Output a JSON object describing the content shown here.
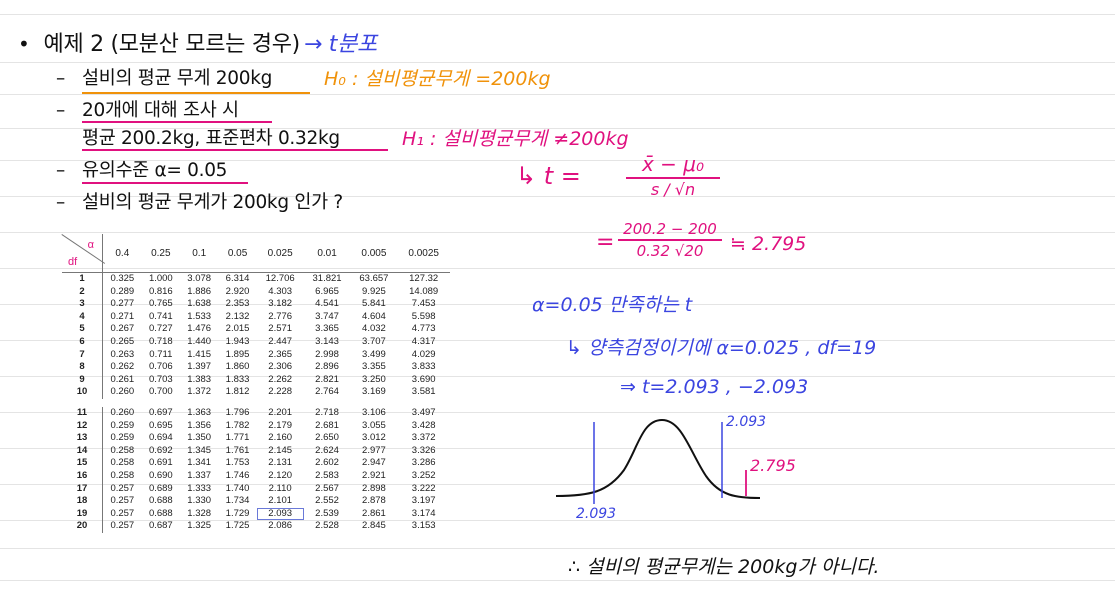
{
  "heading": {
    "bullet": "•",
    "title": "예제 2 (모분산 모르는 경우)",
    "arrow_note": "→ t분포"
  },
  "items": [
    {
      "dash": "–",
      "text": "설비의 평균 무게 200kg"
    },
    {
      "dash": "–",
      "text": "20개에 대해 조사 시"
    },
    {
      "dash": "",
      "text": "평균 200.2kg, 표준편차 0.32kg"
    },
    {
      "dash": "–",
      "text": "유의수준 α= 0.05"
    },
    {
      "dash": "–",
      "text": "설비의 평균 무게가 200kg 인가 ?"
    }
  ],
  "hypotheses": {
    "h0": "H₀ : 설비평균무게 =200kg",
    "h1": "H₁ : 설비평균무게 ≠200kg"
  },
  "formula": {
    "lead": "↳ t =",
    "numerator": "x̄ − μ₀",
    "denominator": "s / √n",
    "eq": "=",
    "num2": "200.2 − 200",
    "den2": "0.32 √20",
    "approx": "≒ 2.795"
  },
  "notes": {
    "line1": "α=0.05 만족하는 t",
    "line2": "↳ 양측검정이기에  α=0.025 , df=19",
    "line3": "⇒  t=2.093 , −2.093",
    "label_right": "2.093",
    "label_left": "2.093",
    "label_stat": "2.795",
    "conclusion": "∴ 설비의 평균무게는 200kg가 아니다."
  },
  "table": {
    "alpha_label": "α",
    "df_label": "df",
    "columns": [
      "0.4",
      "0.25",
      "0.1",
      "0.05",
      "0.025",
      "0.01",
      "0.005",
      "0.0025"
    ],
    "rows": [
      [
        "1",
        "0.325",
        "1.000",
        "3.078",
        "6.314",
        "12.706",
        "31.821",
        "63.657",
        "127.32"
      ],
      [
        "2",
        "0.289",
        "0.816",
        "1.886",
        "2.920",
        "4.303",
        "6.965",
        "9.925",
        "14.089"
      ],
      [
        "3",
        "0.277",
        "0.765",
        "1.638",
        "2.353",
        "3.182",
        "4.541",
        "5.841",
        "7.453"
      ],
      [
        "4",
        "0.271",
        "0.741",
        "1.533",
        "2.132",
        "2.776",
        "3.747",
        "4.604",
        "5.598"
      ],
      [
        "5",
        "0.267",
        "0.727",
        "1.476",
        "2.015",
        "2.571",
        "3.365",
        "4.032",
        "4.773"
      ],
      [
        "6",
        "0.265",
        "0.718",
        "1.440",
        "1.943",
        "2.447",
        "3.143",
        "3.707",
        "4.317"
      ],
      [
        "7",
        "0.263",
        "0.711",
        "1.415",
        "1.895",
        "2.365",
        "2.998",
        "3.499",
        "4.029"
      ],
      [
        "8",
        "0.262",
        "0.706",
        "1.397",
        "1.860",
        "2.306",
        "2.896",
        "3.355",
        "3.833"
      ],
      [
        "9",
        "0.261",
        "0.703",
        "1.383",
        "1.833",
        "2.262",
        "2.821",
        "3.250",
        "3.690"
      ],
      [
        "10",
        "0.260",
        "0.700",
        "1.372",
        "1.812",
        "2.228",
        "2.764",
        "3.169",
        "3.581"
      ],
      [
        "11",
        "0.260",
        "0.697",
        "1.363",
        "1.796",
        "2.201",
        "2.718",
        "3.106",
        "3.497"
      ],
      [
        "12",
        "0.259",
        "0.695",
        "1.356",
        "1.782",
        "2.179",
        "2.681",
        "3.055",
        "3.428"
      ],
      [
        "13",
        "0.259",
        "0.694",
        "1.350",
        "1.771",
        "2.160",
        "2.650",
        "3.012",
        "3.372"
      ],
      [
        "14",
        "0.258",
        "0.692",
        "1.345",
        "1.761",
        "2.145",
        "2.624",
        "2.977",
        "3.326"
      ],
      [
        "15",
        "0.258",
        "0.691",
        "1.341",
        "1.753",
        "2.131",
        "2.602",
        "2.947",
        "3.286"
      ],
      [
        "16",
        "0.258",
        "0.690",
        "1.337",
        "1.746",
        "2.120",
        "2.583",
        "2.921",
        "3.252"
      ],
      [
        "17",
        "0.257",
        "0.689",
        "1.333",
        "1.740",
        "2.110",
        "2.567",
        "2.898",
        "3.222"
      ],
      [
        "18",
        "0.257",
        "0.688",
        "1.330",
        "1.734",
        "2.101",
        "2.552",
        "2.878",
        "3.197"
      ],
      [
        "19",
        "0.257",
        "0.688",
        "1.328",
        "1.729",
        "2.093",
        "2.539",
        "2.861",
        "3.174"
      ],
      [
        "20",
        "0.257",
        "0.687",
        "1.325",
        "1.725",
        "2.086",
        "2.528",
        "2.845",
        "3.153"
      ]
    ],
    "highlight": {
      "row": "19",
      "col": "0.025"
    }
  }
}
